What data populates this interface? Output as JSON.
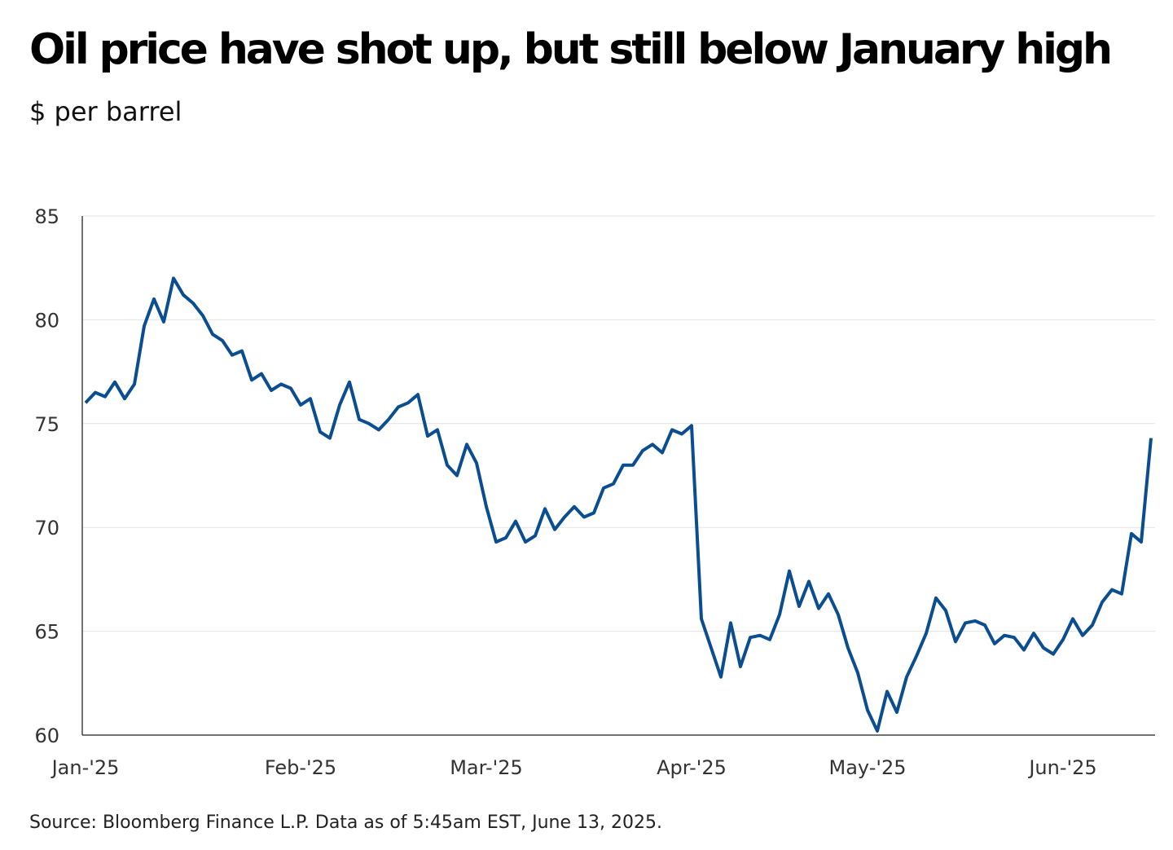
{
  "chart_data": {
    "type": "line",
    "title": "Oil price have shot up, but still below January high",
    "subtitle": "$ per barrel",
    "source": "Source: Bloomberg Finance L.P. Data as of 5:45am EST, June 13, 2025.",
    "categories": [
      "Jan-'25",
      null,
      null,
      null,
      null,
      null,
      null,
      null,
      null,
      null,
      null,
      null,
      null,
      null,
      null,
      null,
      null,
      null,
      null,
      null,
      null,
      null,
      "Feb-'25",
      null,
      null,
      null,
      null,
      null,
      null,
      null,
      null,
      null,
      null,
      null,
      null,
      null,
      null,
      null,
      null,
      null,
      null,
      "Mar-'25",
      null,
      null,
      null,
      null,
      null,
      null,
      null,
      null,
      null,
      null,
      null,
      null,
      null,
      null,
      null,
      null,
      null,
      null,
      null,
      null,
      "Apr-'25",
      null,
      null,
      null,
      null,
      null,
      null,
      null,
      null,
      null,
      null,
      null,
      null,
      null,
      null,
      null,
      null,
      null,
      "May-'25",
      null,
      null,
      null,
      null,
      null,
      null,
      null,
      null,
      null,
      null,
      null,
      null,
      null,
      null,
      null,
      null,
      null,
      null,
      null,
      "Jun-'25",
      null,
      null,
      null,
      null,
      null,
      null,
      null,
      null,
      null
    ],
    "series": [
      {
        "name": "Oil price",
        "color": "#0b4d91",
        "values": [
          76.0,
          76.5,
          76.3,
          77.0,
          76.2,
          76.9,
          79.7,
          81.0,
          79.9,
          82.0,
          81.2,
          80.8,
          80.2,
          79.3,
          79.0,
          78.3,
          78.5,
          77.1,
          77.4,
          76.6,
          76.9,
          76.7,
          75.9,
          76.2,
          74.6,
          74.3,
          75.9,
          77.0,
          75.2,
          75.0,
          74.7,
          75.2,
          75.8,
          76.0,
          76.4,
          74.4,
          74.7,
          73.0,
          72.5,
          74.0,
          73.1,
          71.0,
          69.3,
          69.5,
          70.3,
          69.3,
          69.6,
          70.9,
          69.9,
          70.5,
          71.0,
          70.5,
          70.7,
          71.9,
          72.1,
          73.0,
          73.0,
          73.7,
          74.0,
          73.6,
          74.7,
          74.5,
          74.9,
          65.6,
          64.2,
          62.8,
          65.4,
          63.3,
          64.7,
          64.8,
          64.6,
          65.8,
          67.9,
          66.2,
          67.4,
          66.1,
          66.8,
          65.8,
          64.2,
          63.0,
          61.2,
          60.2,
          62.1,
          61.1,
          62.8,
          63.8,
          64.9,
          66.6,
          66.0,
          64.5,
          65.4,
          65.5,
          65.3,
          64.4,
          64.8,
          64.7,
          64.1,
          64.9,
          64.2,
          63.9,
          64.6,
          65.6,
          64.8,
          65.3,
          66.4,
          67.0,
          66.8,
          69.7,
          69.3,
          74.3
        ]
      }
    ],
    "ylim": [
      60,
      85
    ],
    "yticks": [
      60,
      65,
      70,
      75,
      80,
      85
    ],
    "grid": true
  }
}
